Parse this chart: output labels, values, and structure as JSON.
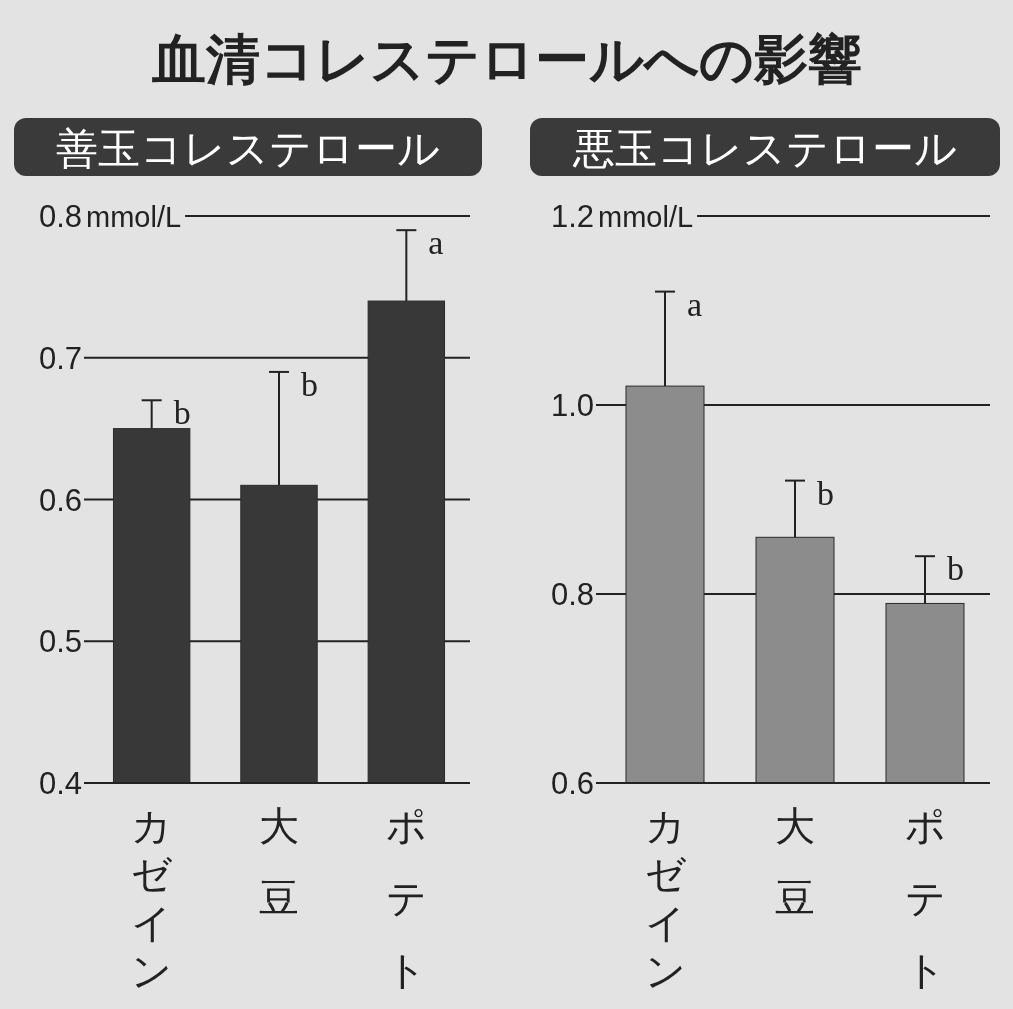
{
  "chart_data": [
    {
      "type": "bar",
      "title": "血清コレステロールへの影響",
      "subtitle": "善玉コレステロール",
      "ylabel": "mmol/L",
      "categories": [
        "カゼイン",
        "大豆",
        "ポテト"
      ],
      "values": [
        0.65,
        0.61,
        0.74
      ],
      "errors": [
        [
          0.65,
          0.67
        ],
        [
          0.61,
          0.69
        ],
        [
          0.74,
          0.79
        ]
      ],
      "color": "#383838",
      "ylim": [
        0.4,
        0.8
      ],
      "yticks": [
        0.4,
        0.5,
        0.6,
        0.7,
        0.8
      ],
      "grid": "y",
      "annotations": [
        {
          "text": "b",
          "x": "カゼイン",
          "y": 0.67
        },
        {
          "text": "b",
          "x": "大豆",
          "y": 0.69
        },
        {
          "text": "a",
          "x": "ポテト",
          "y": 0.79
        }
      ]
    },
    {
      "type": "bar",
      "subtitle": "悪玉コレステロール",
      "ylabel": "mmol/L",
      "categories": [
        "カゼイン",
        "大豆",
        "ポテト"
      ],
      "values": [
        1.02,
        0.86,
        0.79
      ],
      "errors": [
        [
          1.02,
          1.12
        ],
        [
          0.86,
          0.92
        ],
        [
          0.79,
          0.84
        ]
      ],
      "color": "#8c8c8c",
      "ylim": [
        0.6,
        1.2
      ],
      "yticks": [
        0.6,
        0.8,
        {
          "value": 1.0,
          "label": "1.0"
        },
        1.2
      ],
      "grid": "y",
      "annotations": [
        {
          "text": "a",
          "x": "カゼイン",
          "y": 1.12
        },
        {
          "text": "b",
          "x": "大豆",
          "y": 0.92
        },
        {
          "text": "b",
          "x": "ポテト",
          "y": 0.84
        }
      ]
    }
  ]
}
